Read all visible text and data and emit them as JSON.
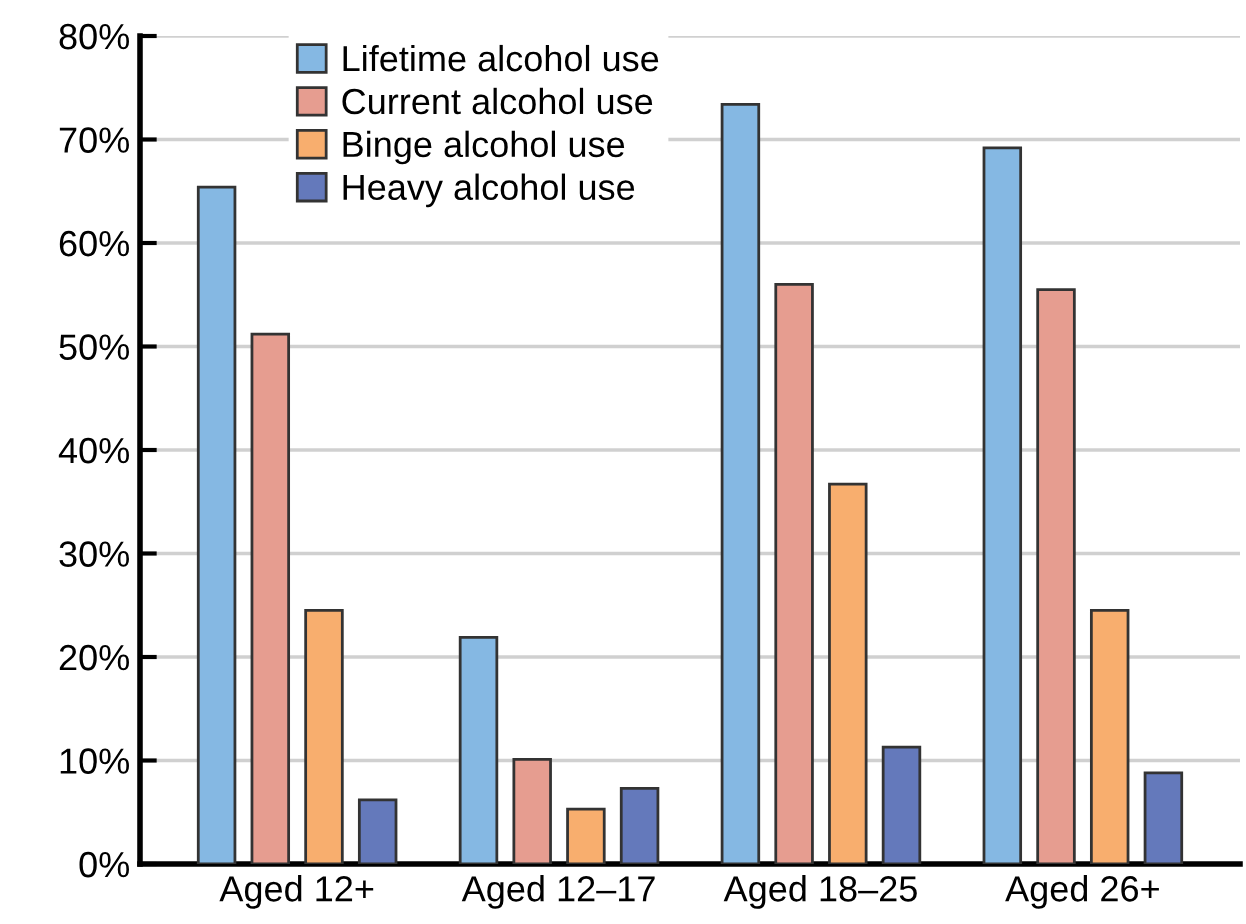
{
  "chart_data": {
    "type": "bar",
    "categories": [
      "Aged 12+",
      "Aged 12–17",
      "Aged 18–25",
      "Aged 26+"
    ],
    "series": [
      {
        "name": "Lifetime alcohol use",
        "color": "#85b8e3",
        "values": [
          65.4,
          21.9,
          73.4,
          69.2
        ]
      },
      {
        "name": "Current alcohol use",
        "color": "#e69d90",
        "values": [
          51.2,
          10.1,
          56.0,
          55.5
        ]
      },
      {
        "name": "Binge alcohol use",
        "color": "#f8ae6e",
        "values": [
          24.5,
          5.3,
          36.7,
          24.5
        ]
      },
      {
        "name": "Heavy alcohol use",
        "color": "#6479bb",
        "values": [
          6.2,
          7.3,
          11.3,
          8.8
        ]
      }
    ],
    "ylim": [
      0,
      80
    ],
    "yticks": [
      {
        "value": 0,
        "label": "0%"
      },
      {
        "value": 10,
        "label": "10%"
      },
      {
        "value": 20,
        "label": "20%"
      },
      {
        "value": 30,
        "label": "30%"
      },
      {
        "value": 40,
        "label": "40%"
      },
      {
        "value": 50,
        "label": "50%"
      },
      {
        "value": 60,
        "label": "60%"
      },
      {
        "value": 70,
        "label": "70%"
      },
      {
        "value": 80,
        "label": "80%"
      }
    ],
    "grid": "y",
    "legend": "top left"
  }
}
